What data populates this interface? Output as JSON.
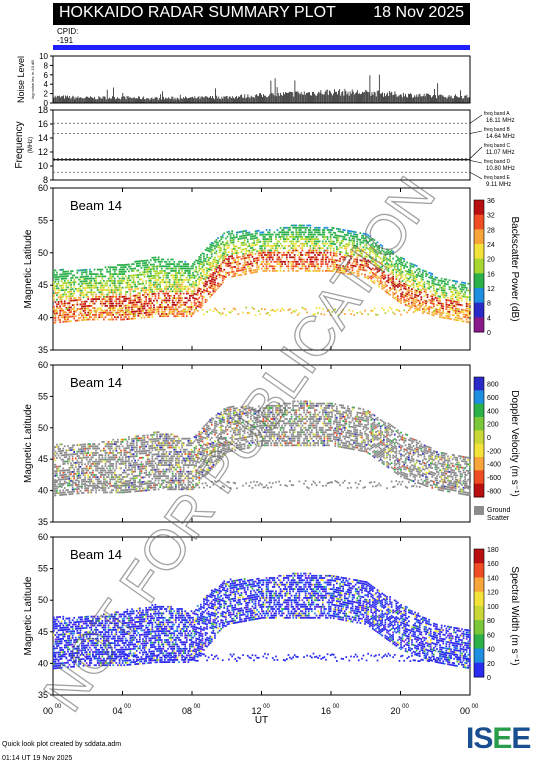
{
  "header": {
    "title": "HOKKAIDO RADAR SUMMARY PLOT",
    "date": "18 Nov 2025",
    "cpid_label": "CPID:",
    "cpid_value": "-191"
  },
  "noise_panel": {
    "ylabel": "Noise Level",
    "ysub": "log noise lev. in 10 dB",
    "yticks": [
      "0",
      "2",
      "4",
      "6",
      "8",
      "10"
    ]
  },
  "freq_panel": {
    "ylabel": "Frequency",
    "yunit": "(MHz)",
    "yticks": [
      "8",
      "10",
      "12",
      "14",
      "16",
      "18"
    ],
    "bands": [
      {
        "label": "freq band A",
        "value": "16.11 MHz",
        "mhz": 16.11
      },
      {
        "label": "freq band B",
        "value": "14.64 MHz",
        "mhz": 14.64
      },
      {
        "label": "freq band C",
        "value": "11.07 MHz",
        "mhz": 11.07
      },
      {
        "label": "freq band D",
        "value": "10.80 MHz",
        "mhz": 10.8
      },
      {
        "label": "freq band E",
        "value": "9.11 MHz",
        "mhz": 9.11
      }
    ]
  },
  "panels": [
    {
      "beam": "Beam 14",
      "ylabel": "Magnetic Latitude",
      "cb_label": "Backscatter Power (dB)",
      "cb_ticks": [
        "0",
        "4",
        "8",
        "12",
        "16",
        "20",
        "24",
        "28",
        "32",
        "36"
      ]
    },
    {
      "beam": "Beam 14",
      "ylabel": "Magnetic Latitude",
      "cb_label": "Doppler Velocity (m s⁻¹)",
      "cb_ticks": [
        "800",
        "600",
        "400",
        "200",
        "0",
        "-200",
        "-400",
        "-600",
        "-800"
      ],
      "gs_label_1": "Ground",
      "gs_label_2": "Scatter"
    },
    {
      "beam": "Beam 14",
      "ylabel": "Magnetic Latitude",
      "cb_label": "Spectral Width (m s⁻¹)",
      "cb_ticks": [
        "0",
        "20",
        "40",
        "60",
        "80",
        "100",
        "120",
        "140",
        "160",
        "180"
      ]
    }
  ],
  "lat_ticks": [
    "35",
    "40",
    "45",
    "50",
    "55",
    "60"
  ],
  "xaxis": {
    "label": "UT",
    "ticks": [
      "00",
      "04",
      "08",
      "12",
      "16",
      "20",
      "00"
    ],
    "tick_sup": "00"
  },
  "watermark": "NOT FOR PUBLICATION",
  "footer": {
    "line1": "Quick look plot created by sddata.adm",
    "line2": "01:14 UT 19 Nov 2025",
    "logo": "ISEE"
  },
  "chart_data": {
    "type": "heatmap",
    "title": "HOKKAIDO RADAR SUMMARY PLOT",
    "date": "18 Nov 2025",
    "x_range_hours_ut": [
      0,
      24
    ],
    "x_ticks": [
      "00",
      "04",
      "08",
      "12",
      "16",
      "20",
      "00"
    ],
    "y_range_mlat": [
      35,
      60
    ],
    "noise_range": [
      0,
      10
    ],
    "freq_range_mhz": [
      8,
      18
    ],
    "noise_envelope": [
      {
        "ut": 0,
        "value": 1.5
      },
      {
        "ut": 2,
        "value": 1.2
      },
      {
        "ut": 4,
        "value": 1.3
      },
      {
        "ut": 6,
        "value": 1.1
      },
      {
        "ut": 8,
        "value": 1.2
      },
      {
        "ut": 10,
        "value": 1.4
      },
      {
        "ut": 12,
        "value": 1.8
      },
      {
        "ut": 14,
        "value": 2.2
      },
      {
        "ut": 16,
        "value": 2.6
      },
      {
        "ut": 18,
        "value": 2.4
      },
      {
        "ut": 20,
        "value": 2.0
      },
      {
        "ut": 22,
        "value": 1.6
      },
      {
        "ut": 24,
        "value": 1.5
      }
    ],
    "scatter_band": [
      {
        "ut": 0,
        "lo": 41,
        "hi": 46
      },
      {
        "ut": 2,
        "lo": 41.5,
        "hi": 46
      },
      {
        "ut": 4,
        "lo": 41.5,
        "hi": 47
      },
      {
        "ut": 6,
        "lo": 42,
        "hi": 48
      },
      {
        "ut": 8,
        "lo": 42,
        "hi": 47
      },
      {
        "ut": 9,
        "lo": 45,
        "hi": 50
      },
      {
        "ut": 10,
        "lo": 48,
        "hi": 52
      },
      {
        "ut": 12,
        "lo": 49,
        "hi": 52
      },
      {
        "ut": 14,
        "lo": 49,
        "hi": 53
      },
      {
        "ut": 16,
        "lo": 49,
        "hi": 52.5
      },
      {
        "ut": 18,
        "lo": 48,
        "hi": 51.5
      },
      {
        "ut": 20,
        "lo": 44,
        "hi": 48
      },
      {
        "ut": 22,
        "lo": 42,
        "hi": 45
      },
      {
        "ut": 24,
        "lo": 41,
        "hi": 44
      }
    ],
    "colorbars": [
      {
        "label": "Backscatter Power (dB)",
        "range": [
          0,
          36
        ]
      },
      {
        "label": "Doppler Velocity (m s⁻¹)",
        "range": [
          -800,
          800
        ]
      },
      {
        "label": "Spectral Width (m s⁻¹)",
        "range": [
          0,
          180
        ]
      }
    ]
  }
}
